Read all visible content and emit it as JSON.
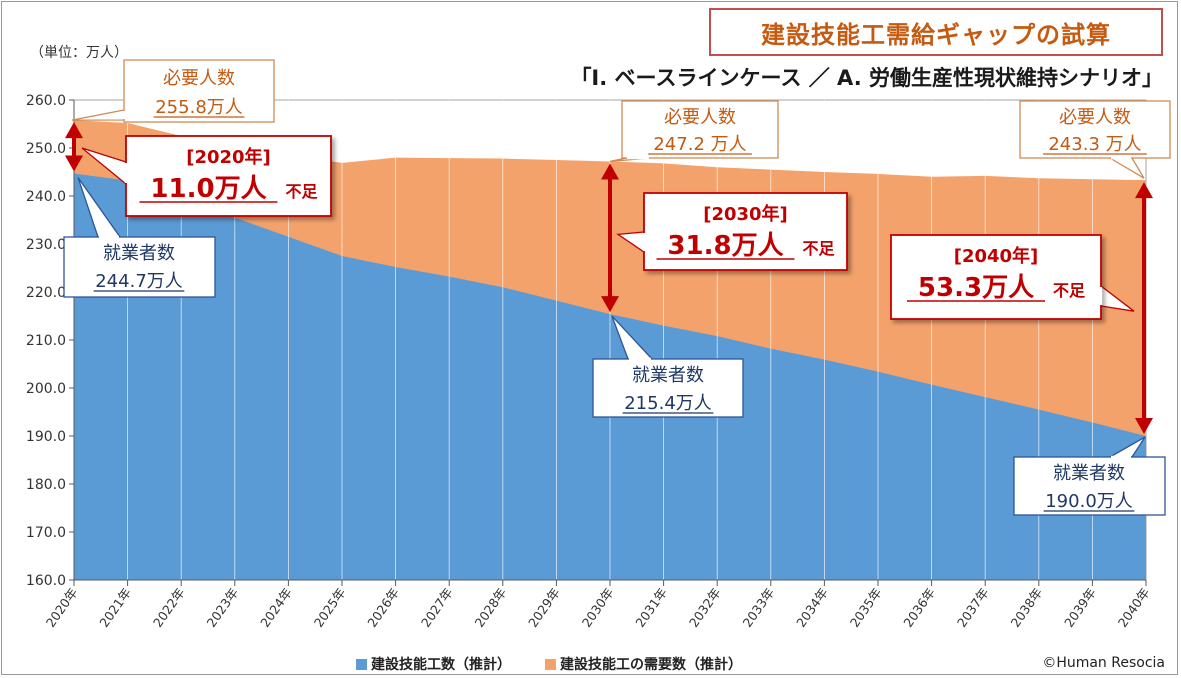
{
  "header": {
    "title": "建設技能工需給ギャップの試算",
    "scenario": "「Ⅰ. ベースラインケース ／ A. 労働生産性現状維持シナリオ」",
    "unit": "（単位：万人）"
  },
  "chart_data": {
    "type": "area",
    "categories": [
      "2020年",
      "2021年",
      "2022年",
      "2023年",
      "2024年",
      "2025年",
      "2026年",
      "2027年",
      "2028年",
      "2029年",
      "2030年",
      "2031年",
      "2032年",
      "2033年",
      "2034年",
      "2035年",
      "2036年",
      "2037年",
      "2038年",
      "2039年",
      "2040年"
    ],
    "series": [
      {
        "name": "建設技能工数（推計）",
        "color": "#5b9bd5",
        "values": [
          244.7,
          243.2,
          240.0,
          235.5,
          231.5,
          227.5,
          225.2,
          223.2,
          221.0,
          218.2,
          215.4,
          213.0,
          210.8,
          208.2,
          205.9,
          203.4,
          200.7,
          198.1,
          195.5,
          192.8,
          190.0
        ]
      },
      {
        "name": "建設技能工の需要数（推計）",
        "color": "#f4a26b",
        "values": [
          255.8,
          255.2,
          252.5,
          250.3,
          248.5,
          246.9,
          248.0,
          247.9,
          247.8,
          247.5,
          247.2,
          246.8,
          246.0,
          245.5,
          245.0,
          244.6,
          244.0,
          244.2,
          243.7,
          243.5,
          243.3
        ]
      }
    ],
    "yticks": [
      "260.0",
      "250.0",
      "240.0",
      "230.0",
      "220.0",
      "210.0",
      "200.0",
      "190.0",
      "180.0",
      "170.0",
      "160.0"
    ],
    "ylim": [
      160,
      260
    ],
    "grid": "vertical",
    "legend_position": "bottom-center"
  },
  "annotations": {
    "demand_label": "必要人数",
    "worker_label": "就業者数",
    "shortage_suffix": "不足",
    "callouts": [
      {
        "kind": "demand",
        "value": "255.8万人"
      },
      {
        "kind": "demand",
        "value": "247.2 万人"
      },
      {
        "kind": "demand",
        "value": "243.3 万人"
      },
      {
        "kind": "worker",
        "value": "244.7万人"
      },
      {
        "kind": "worker",
        "value": "215.4万人"
      },
      {
        "kind": "worker",
        "value": "190.0万人"
      },
      {
        "kind": "gap",
        "year": "[2020年]",
        "value": "11.0万人"
      },
      {
        "kind": "gap",
        "year": "[2030年]",
        "value": "31.8万人"
      },
      {
        "kind": "gap",
        "year": "[2040年]",
        "value": "53.3万人"
      }
    ]
  },
  "legend": {
    "items": [
      {
        "label": "建設技能工数（推計）",
        "color": "#5b9bd5"
      },
      {
        "label": "建設技能工の需要数（推計）",
        "color": "#f4a26b"
      }
    ]
  },
  "copyright": "©Human Resocia"
}
